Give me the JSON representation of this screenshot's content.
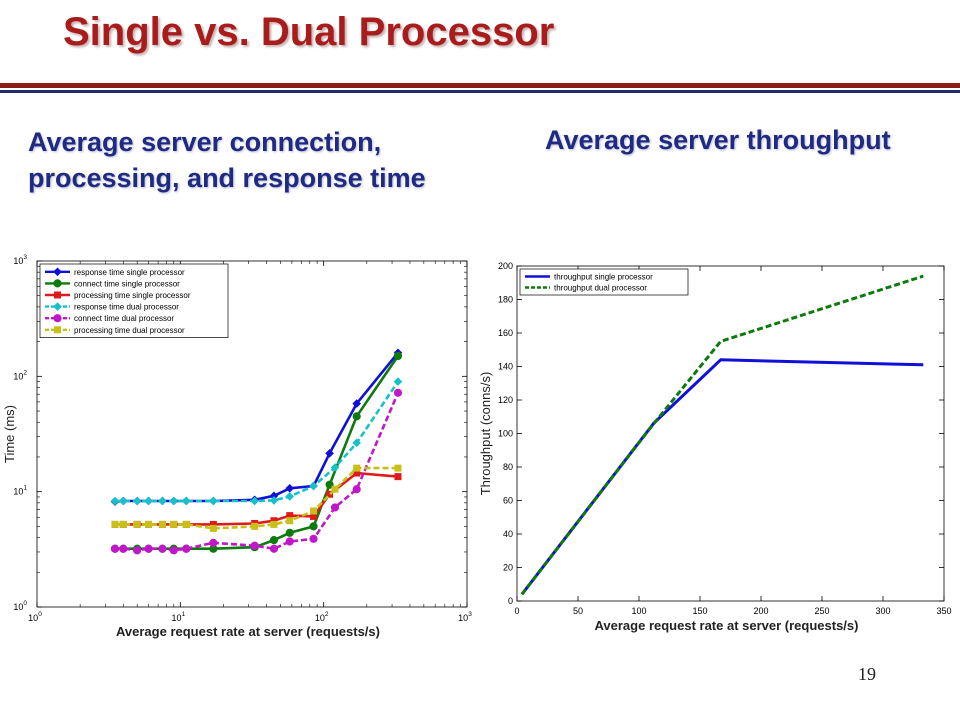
{
  "slide": {
    "title": "Single vs. Dual Processor",
    "subtitle_left_line1": "Average server connection,",
    "subtitle_left_line2": "processing, and response time",
    "subtitle_right": "Average server throughput",
    "page_number": "19"
  },
  "colors": {
    "title": "#a81c1c",
    "subtitle": "#1f2a80",
    "rule_top": "#8b1a1a",
    "rule_bottom": "#1f2a6e"
  },
  "chart_data": [
    {
      "type": "line",
      "xscale": "log",
      "yscale": "log",
      "xlabel": "Average request rate at server (requests/s)",
      "ylabel": "Time (ms)",
      "xlim": [
        1,
        1000
      ],
      "ylim": [
        1,
        1000
      ],
      "x_ticks": [
        {
          "v": 1,
          "base": "10",
          "exp": "0"
        },
        {
          "v": 10,
          "base": "10",
          "exp": "1"
        },
        {
          "v": 100,
          "base": "10",
          "exp": "2"
        },
        {
          "v": 1000,
          "base": "10",
          "exp": "3"
        }
      ],
      "y_ticks": [
        {
          "v": 1,
          "base": "10",
          "exp": "0"
        },
        {
          "v": 10,
          "base": "10",
          "exp": "1"
        },
        {
          "v": 100,
          "base": "10",
          "exp": "2"
        },
        {
          "v": 1000,
          "base": "10",
          "exp": "3"
        }
      ],
      "legend_position": "top-left",
      "series": [
        {
          "name": "response time single processor",
          "color": "#1010d8",
          "dash": "solid",
          "marker": "diamond",
          "x": [
            3.5,
            4,
            5,
            6,
            7.5,
            9,
            11,
            17,
            33,
            45,
            58,
            85,
            110,
            170,
            330
          ],
          "y": [
            8.2,
            8.3,
            8.3,
            8.3,
            8.3,
            8.3,
            8.3,
            8.3,
            8.5,
            9.2,
            10.7,
            11.2,
            21.5,
            58,
            160
          ]
        },
        {
          "name": "connect time single processor",
          "color": "#0c7a0c",
          "dash": "solid",
          "marker": "circle",
          "x": [
            3.5,
            4,
            5,
            6,
            7.5,
            9,
            11,
            17,
            33,
            45,
            58,
            85,
            110,
            170,
            330
          ],
          "y": [
            3.2,
            3.2,
            3.2,
            3.2,
            3.2,
            3.2,
            3.2,
            3.2,
            3.3,
            3.8,
            4.4,
            5.0,
            11.5,
            45,
            150
          ]
        },
        {
          "name": "processing time single processor",
          "color": "#e01a1a",
          "dash": "solid",
          "marker": "square",
          "x": [
            3.5,
            4,
            5,
            6,
            7.5,
            9,
            11,
            17,
            33,
            45,
            58,
            85,
            110,
            170,
            330
          ],
          "y": [
            5.2,
            5.2,
            5.2,
            5.2,
            5.2,
            5.2,
            5.2,
            5.2,
            5.3,
            5.6,
            6.2,
            6.1,
            9.5,
            14.5,
            13.5
          ]
        },
        {
          "name": "response time dual processor",
          "color": "#18c0c8",
          "dash": "dashed",
          "marker": "diamond",
          "x": [
            3.5,
            4,
            5,
            6,
            7.5,
            9,
            11,
            17,
            33,
            45,
            58,
            85,
            120,
            170,
            330
          ],
          "y": [
            8.3,
            8.3,
            8.3,
            8.3,
            8.3,
            8.3,
            8.3,
            8.3,
            8.3,
            8.4,
            9.1,
            11.2,
            16.2,
            26.5,
            90
          ]
        },
        {
          "name": "connect time dual processor",
          "color": "#c018c8",
          "dash": "dashed",
          "marker": "circle",
          "x": [
            3.5,
            4,
            5,
            6,
            7.5,
            9,
            11,
            17,
            33,
            45,
            58,
            85,
            120,
            170,
            330
          ],
          "y": [
            3.2,
            3.2,
            3.1,
            3.2,
            3.2,
            3.1,
            3.2,
            3.6,
            3.4,
            3.2,
            3.7,
            3.9,
            7.3,
            10.5,
            72
          ]
        },
        {
          "name": "processing time dual processor",
          "color": "#c8c018",
          "dash": "dashed",
          "marker": "square",
          "x": [
            3.5,
            4,
            5,
            6,
            7.5,
            9,
            11,
            17,
            33,
            45,
            58,
            85,
            120,
            170,
            330
          ],
          "y": [
            5.2,
            5.2,
            5.2,
            5.2,
            5.2,
            5.2,
            5.2,
            4.8,
            5.0,
            5.2,
            5.6,
            6.8,
            10.5,
            16,
            16
          ]
        }
      ]
    },
    {
      "type": "line",
      "xscale": "linear",
      "yscale": "linear",
      "xlabel": "Average request rate at server (requests/s)",
      "ylabel": "Throughput (conns/s)",
      "xlim": [
        0,
        350
      ],
      "ylim": [
        0,
        200
      ],
      "x_ticks": [
        0,
        50,
        100,
        150,
        200,
        250,
        300,
        350
      ],
      "y_ticks": [
        0,
        20,
        40,
        60,
        80,
        100,
        120,
        140,
        160,
        180,
        200
      ],
      "legend_position": "top-left",
      "series": [
        {
          "name": "throughput single processor",
          "color": "#1010d8",
          "dash": "solid",
          "x": [
            4,
            112,
            167,
            333
          ],
          "y": [
            4,
            106,
            144,
            141
          ]
        },
        {
          "name": "throughput dual processor",
          "color": "#0c7a0c",
          "dash": "dashed",
          "x": [
            4,
            110,
            167,
            333
          ],
          "y": [
            4,
            104,
            155,
            194
          ]
        }
      ]
    }
  ]
}
